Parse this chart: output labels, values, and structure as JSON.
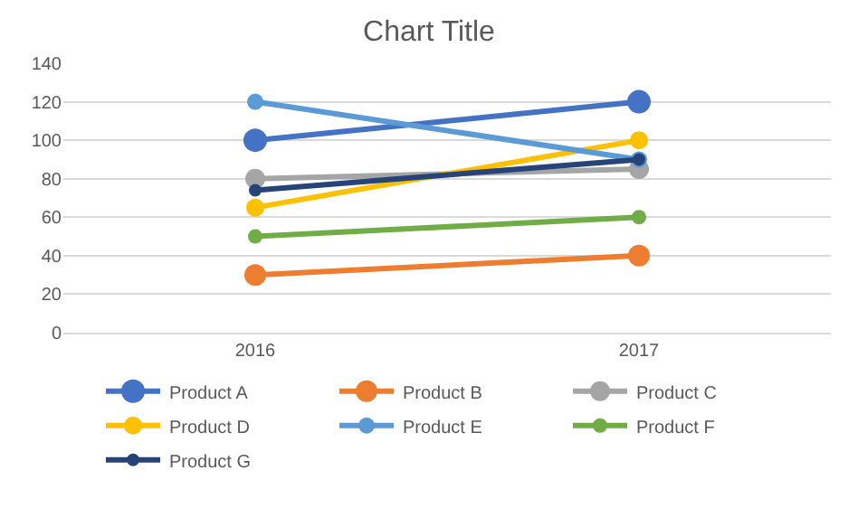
{
  "chart_data": {
    "type": "line",
    "title": "Chart Title",
    "categories": [
      "2016",
      "2017"
    ],
    "series": [
      {
        "name": "Product A",
        "color": "#4472c4",
        "values": [
          100,
          120
        ]
      },
      {
        "name": "Product B",
        "color": "#ed7d31",
        "values": [
          30,
          40
        ]
      },
      {
        "name": "Product C",
        "color": "#a5a5a5",
        "values": [
          80,
          85
        ]
      },
      {
        "name": "Product D",
        "color": "#ffc000",
        "values": [
          65,
          100
        ]
      },
      {
        "name": "Product E",
        "color": "#5b9bd5",
        "values": [
          120,
          90
        ]
      },
      {
        "name": "Product F",
        "color": "#70ad47",
        "values": [
          50,
          60
        ]
      },
      {
        "name": "Product G",
        "color": "#264478",
        "values": [
          74,
          90
        ]
      }
    ],
    "ylim": [
      0,
      140
    ],
    "yticks": [
      0,
      20,
      40,
      60,
      80,
      100,
      120,
      140
    ],
    "grid": "y",
    "legend": "bottom",
    "marker": "circle",
    "line_style": "solid"
  }
}
